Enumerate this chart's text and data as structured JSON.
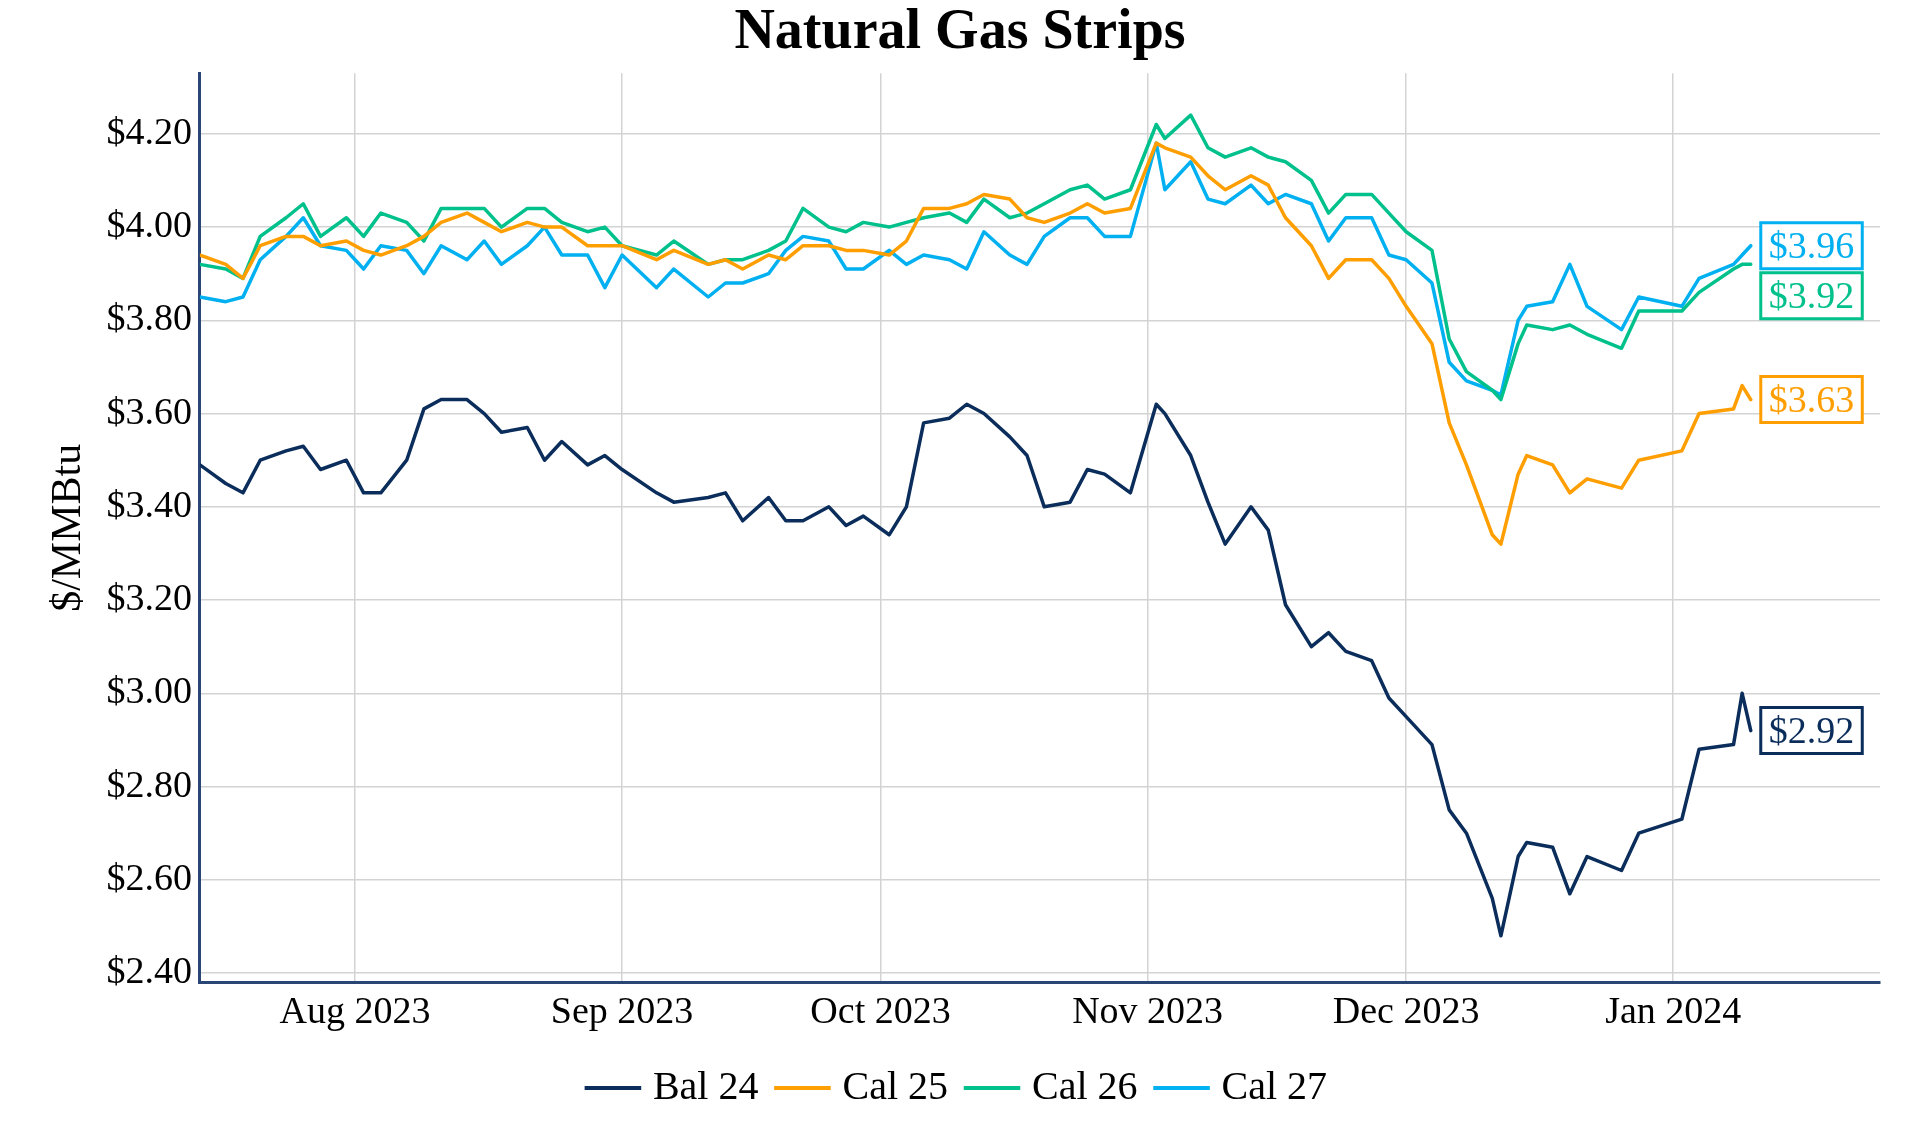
{
  "chart_data": {
    "type": "line",
    "title": "Natural Gas Strips",
    "ylabel": "$/MMBtu",
    "x": [
      "2023-07-14",
      "2023-07-17",
      "2023-07-19",
      "2023-07-21",
      "2023-07-24",
      "2023-07-26",
      "2023-07-28",
      "2023-07-31",
      "2023-08-02",
      "2023-08-04",
      "2023-08-07",
      "2023-08-09",
      "2023-08-11",
      "2023-08-14",
      "2023-08-16",
      "2023-08-18",
      "2023-08-21",
      "2023-08-23",
      "2023-08-25",
      "2023-08-28",
      "2023-08-30",
      "2023-09-01",
      "2023-09-05",
      "2023-09-07",
      "2023-09-11",
      "2023-09-13",
      "2023-09-15",
      "2023-09-18",
      "2023-09-20",
      "2023-09-22",
      "2023-09-25",
      "2023-09-27",
      "2023-09-29",
      "2023-10-02",
      "2023-10-04",
      "2023-10-06",
      "2023-10-09",
      "2023-10-11",
      "2023-10-13",
      "2023-10-16",
      "2023-10-18",
      "2023-10-20",
      "2023-10-23",
      "2023-10-25",
      "2023-10-27",
      "2023-10-30",
      "2023-11-02",
      "2023-11-03",
      "2023-11-06",
      "2023-11-08",
      "2023-11-10",
      "2023-11-13",
      "2023-11-15",
      "2023-11-17",
      "2023-11-20",
      "2023-11-22",
      "2023-11-24",
      "2023-11-27",
      "2023-11-29",
      "2023-12-01",
      "2023-12-04",
      "2023-12-06",
      "2023-12-08",
      "2023-12-11",
      "2023-12-12",
      "2023-12-14",
      "2023-12-15",
      "2023-12-18",
      "2023-12-20",
      "2023-12-22",
      "2023-12-26",
      "2023-12-28",
      "2024-01-02",
      "2024-01-04",
      "2024-01-08",
      "2024-01-09",
      "2024-01-10"
    ],
    "series": [
      {
        "name": "Bal 24",
        "color": "#0b2d5b",
        "values": [
          3.49,
          3.45,
          3.43,
          3.5,
          3.52,
          3.53,
          3.48,
          3.5,
          3.43,
          3.43,
          3.5,
          3.61,
          3.63,
          3.63,
          3.6,
          3.56,
          3.57,
          3.5,
          3.54,
          3.49,
          3.51,
          3.48,
          3.43,
          3.41,
          3.42,
          3.43,
          3.37,
          3.42,
          3.37,
          3.37,
          3.4,
          3.36,
          3.38,
          3.34,
          3.4,
          3.58,
          3.59,
          3.62,
          3.6,
          3.55,
          3.51,
          3.4,
          3.41,
          3.48,
          3.47,
          3.43,
          3.62,
          3.6,
          3.51,
          3.41,
          3.32,
          3.4,
          3.35,
          3.19,
          3.1,
          3.13,
          3.09,
          3.07,
          2.99,
          2.95,
          2.89,
          2.75,
          2.7,
          2.56,
          2.48,
          2.65,
          2.68,
          2.67,
          2.57,
          2.65,
          2.62,
          2.7,
          2.73,
          2.88,
          2.89,
          3.0,
          2.92
        ]
      },
      {
        "name": "Cal 25",
        "color": "#ff9e00",
        "values": [
          3.94,
          3.92,
          3.89,
          3.96,
          3.98,
          3.98,
          3.96,
          3.97,
          3.95,
          3.94,
          3.96,
          3.98,
          4.01,
          4.03,
          4.01,
          3.99,
          4.01,
          4.0,
          4.0,
          3.96,
          3.96,
          3.96,
          3.93,
          3.95,
          3.92,
          3.93,
          3.91,
          3.94,
          3.93,
          3.96,
          3.96,
          3.95,
          3.95,
          3.94,
          3.97,
          4.04,
          4.04,
          4.05,
          4.07,
          4.06,
          4.02,
          4.01,
          4.03,
          4.05,
          4.03,
          4.04,
          4.18,
          4.17,
          4.15,
          4.11,
          4.08,
          4.11,
          4.09,
          4.02,
          3.96,
          3.89,
          3.93,
          3.93,
          3.89,
          3.83,
          3.75,
          3.58,
          3.49,
          3.34,
          3.32,
          3.47,
          3.51,
          3.49,
          3.43,
          3.46,
          3.44,
          3.5,
          3.52,
          3.6,
          3.61,
          3.66,
          3.63
        ]
      },
      {
        "name": "Cal 26",
        "color": "#00c08b",
        "values": [
          3.92,
          3.91,
          3.89,
          3.98,
          4.02,
          4.05,
          3.98,
          4.02,
          3.98,
          4.03,
          4.01,
          3.97,
          4.04,
          4.04,
          4.04,
          4.0,
          4.04,
          4.04,
          4.01,
          3.99,
          4.0,
          3.96,
          3.94,
          3.97,
          3.92,
          3.93,
          3.93,
          3.95,
          3.97,
          4.04,
          4.0,
          3.99,
          4.01,
          4.0,
          4.01,
          4.02,
          4.03,
          4.01,
          4.06,
          4.02,
          4.03,
          4.05,
          4.08,
          4.09,
          4.06,
          4.08,
          4.22,
          4.19,
          4.24,
          4.17,
          4.15,
          4.17,
          4.15,
          4.14,
          4.1,
          4.03,
          4.07,
          4.07,
          4.03,
          3.99,
          3.95,
          3.76,
          3.69,
          3.65,
          3.63,
          3.75,
          3.79,
          3.78,
          3.79,
          3.77,
          3.74,
          3.82,
          3.82,
          3.86,
          3.91,
          3.92,
          3.92
        ]
      },
      {
        "name": "Cal 27",
        "color": "#00b0f0",
        "values": [
          3.85,
          3.84,
          3.85,
          3.93,
          3.98,
          4.02,
          3.96,
          3.95,
          3.91,
          3.96,
          3.95,
          3.9,
          3.96,
          3.93,
          3.97,
          3.92,
          3.96,
          4.0,
          3.94,
          3.94,
          3.87,
          3.94,
          3.87,
          3.91,
          3.85,
          3.88,
          3.88,
          3.9,
          3.95,
          3.98,
          3.97,
          3.91,
          3.91,
          3.95,
          3.92,
          3.94,
          3.93,
          3.91,
          3.99,
          3.94,
          3.92,
          3.98,
          4.02,
          4.02,
          3.98,
          3.98,
          4.18,
          4.08,
          4.14,
          4.06,
          4.05,
          4.09,
          4.05,
          4.07,
          4.05,
          3.97,
          4.02,
          4.02,
          3.94,
          3.93,
          3.88,
          3.71,
          3.67,
          3.65,
          3.64,
          3.8,
          3.83,
          3.84,
          3.92,
          3.83,
          3.78,
          3.85,
          3.83,
          3.89,
          3.92,
          3.94,
          3.96
        ]
      }
    ],
    "annotations": [
      {
        "text": "$2.92",
        "x": "2024-01-10",
        "y": 2.92
      },
      {
        "text": "$3.63",
        "x": "2024-01-10",
        "y": 3.63
      },
      {
        "text": "$3.92",
        "x": "2024-01-10",
        "y": 3.92
      },
      {
        "text": "$3.96",
        "x": "2024-01-10",
        "y": 3.96
      }
    ],
    "xlim": [
      "2023-07-14",
      "2024-01-25"
    ],
    "xticks": [
      {
        "value": "2023-08-01",
        "label": "Aug 2023"
      },
      {
        "value": "2023-09-01",
        "label": "Sep 2023"
      },
      {
        "value": "2023-10-01",
        "label": "Oct 2023"
      },
      {
        "value": "2023-11-01",
        "label": "Nov 2023"
      },
      {
        "value": "2023-12-01",
        "label": "Dec 2023"
      },
      {
        "value": "2024-01-01",
        "label": "Jan 2024"
      }
    ],
    "ylim": [
      2.38,
      4.33
    ],
    "yticks": [
      {
        "value": 2.4,
        "label": "$2.40"
      },
      {
        "value": 2.6,
        "label": "$2.60"
      },
      {
        "value": 2.8,
        "label": "$2.80"
      },
      {
        "value": 3.0,
        "label": "$3.00"
      },
      {
        "value": 3.2,
        "label": "$3.20"
      },
      {
        "value": 3.4,
        "label": "$3.40"
      },
      {
        "value": 3.6,
        "label": "$3.60"
      },
      {
        "value": 3.8,
        "label": "$3.80"
      },
      {
        "value": 4.0,
        "label": "$4.00"
      },
      {
        "value": 4.2,
        "label": "$4.20"
      }
    ],
    "grid": true,
    "legend": "bottom",
    "marker": "none",
    "line_style": "solid"
  }
}
